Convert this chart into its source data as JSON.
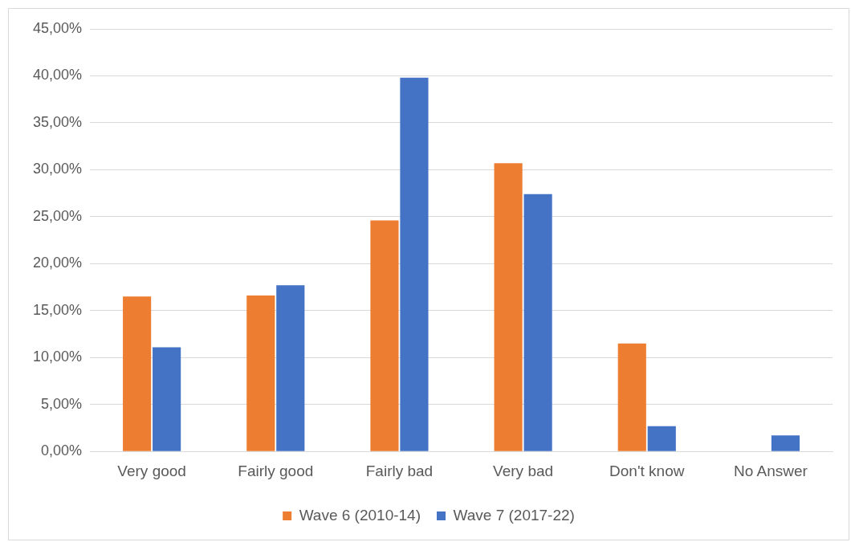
{
  "chart_data": {
    "type": "bar",
    "categories": [
      "Very good",
      "Fairly good",
      "Fairly bad",
      "Very bad",
      "Don't know",
      "No Answer"
    ],
    "series": [
      {
        "name": "Wave 6 (2010-14)",
        "color": "#ed7d31",
        "values": [
          16.5,
          16.6,
          24.6,
          30.7,
          11.5,
          0
        ]
      },
      {
        "name": "Wave 7 (2017-22)",
        "color": "#4472c4",
        "values": [
          11.1,
          17.7,
          39.8,
          27.4,
          2.7,
          1.7
        ]
      }
    ],
    "ylim": [
      0,
      45
    ],
    "yticks": [
      {
        "value": 0,
        "label": "0,00%"
      },
      {
        "value": 5,
        "label": "5,00%"
      },
      {
        "value": 10,
        "label": "10,00%"
      },
      {
        "value": 15,
        "label": "15,00%"
      },
      {
        "value": 20,
        "label": "20,00%"
      },
      {
        "value": 25,
        "label": "25,00%"
      },
      {
        "value": 30,
        "label": "30,00%"
      },
      {
        "value": 35,
        "label": "35,00%"
      },
      {
        "value": 40,
        "label": "40,00%"
      },
      {
        "value": 45,
        "label": "45,00%"
      }
    ],
    "grid": "y",
    "legend": "bottom"
  }
}
